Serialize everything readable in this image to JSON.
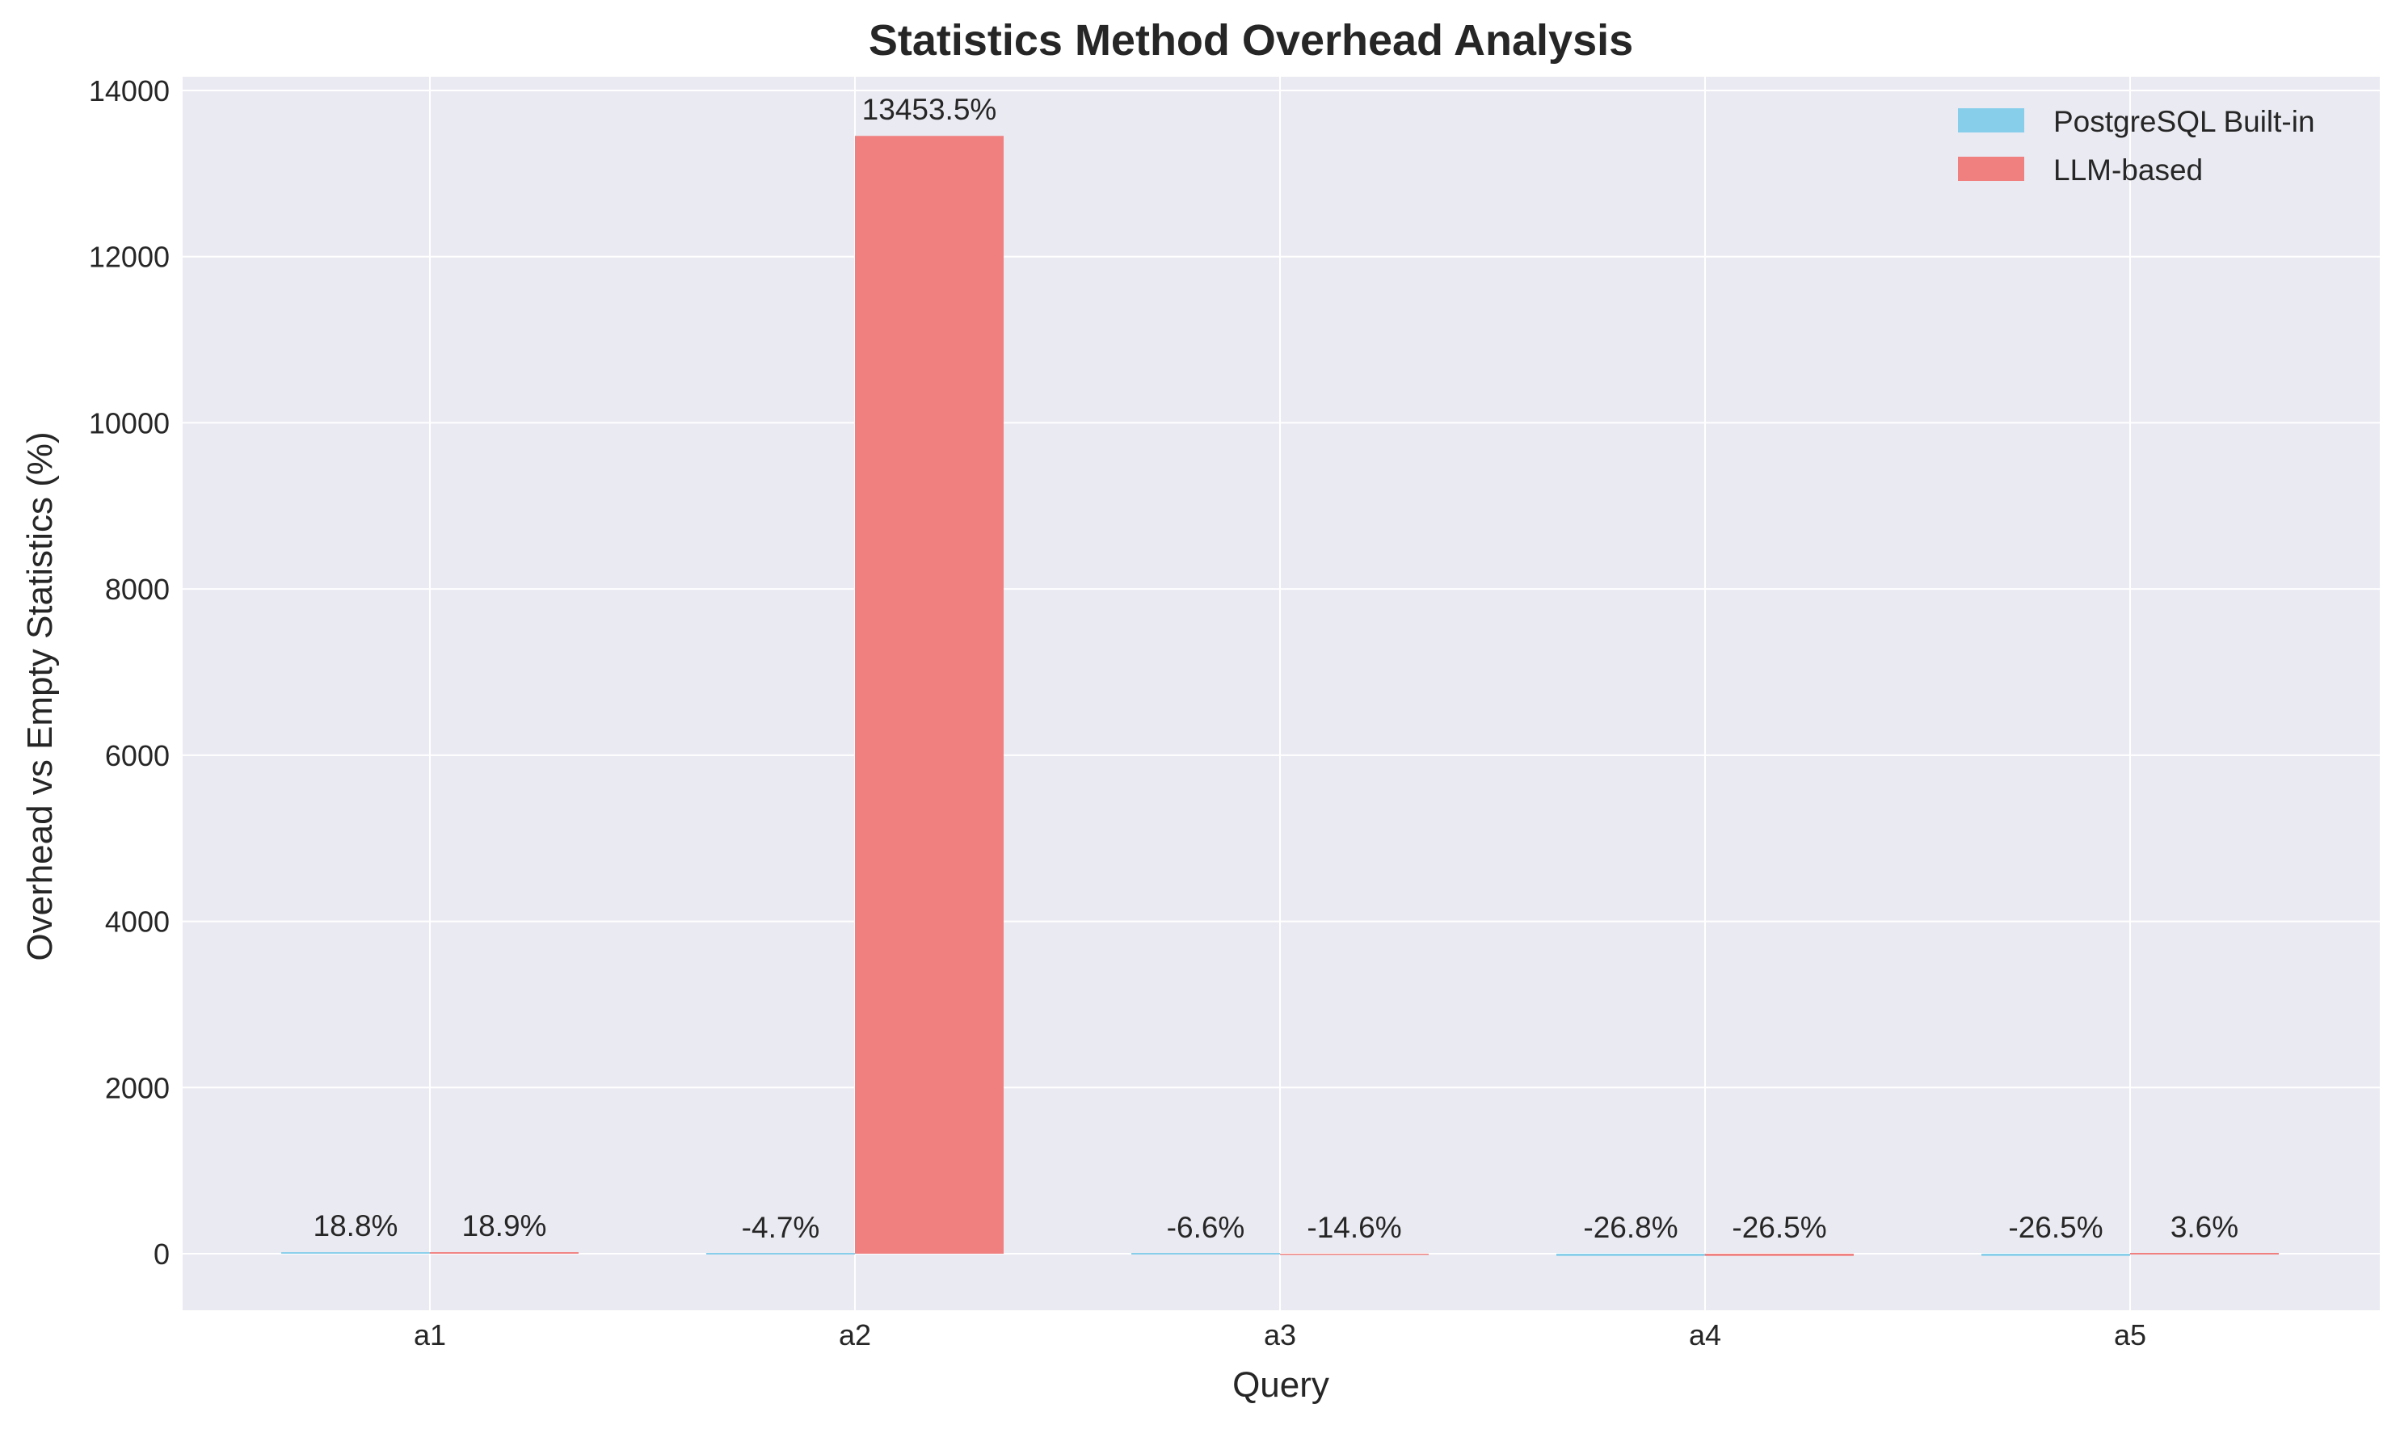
{
  "chart_data": {
    "type": "bar",
    "title": "Statistics Method Overhead Analysis",
    "xlabel": "Query",
    "ylabel": "Overhead vs Empty Statistics (%)",
    "categories": [
      "a1",
      "a2",
      "a3",
      "a4",
      "a5"
    ],
    "series": [
      {
        "name": "PostgreSQL Built-in",
        "color": "#87CEEB",
        "values": [
          18.8,
          -4.7,
          -6.6,
          -26.8,
          -26.5
        ],
        "labels": [
          "18.8%",
          "-4.7%",
          "-6.6%",
          "-26.8%",
          "-26.5%"
        ]
      },
      {
        "name": "LLM-based",
        "color": "#F08080",
        "values": [
          18.9,
          13453.5,
          -14.6,
          -26.5,
          3.6
        ],
        "labels": [
          "18.9%",
          "13453.5%",
          "-14.6%",
          "-26.5%",
          "3.6%"
        ]
      }
    ],
    "ylim": [
      -700,
      14150
    ],
    "yticks": [
      0,
      2000,
      4000,
      6000,
      8000,
      10000,
      12000,
      14000
    ],
    "ytick_labels": [
      "0",
      "2000",
      "4000",
      "6000",
      "8000",
      "10000",
      "12000",
      "14000"
    ],
    "grid": true,
    "legend_position": "top-right",
    "background_color": "#EAEAF2"
  }
}
